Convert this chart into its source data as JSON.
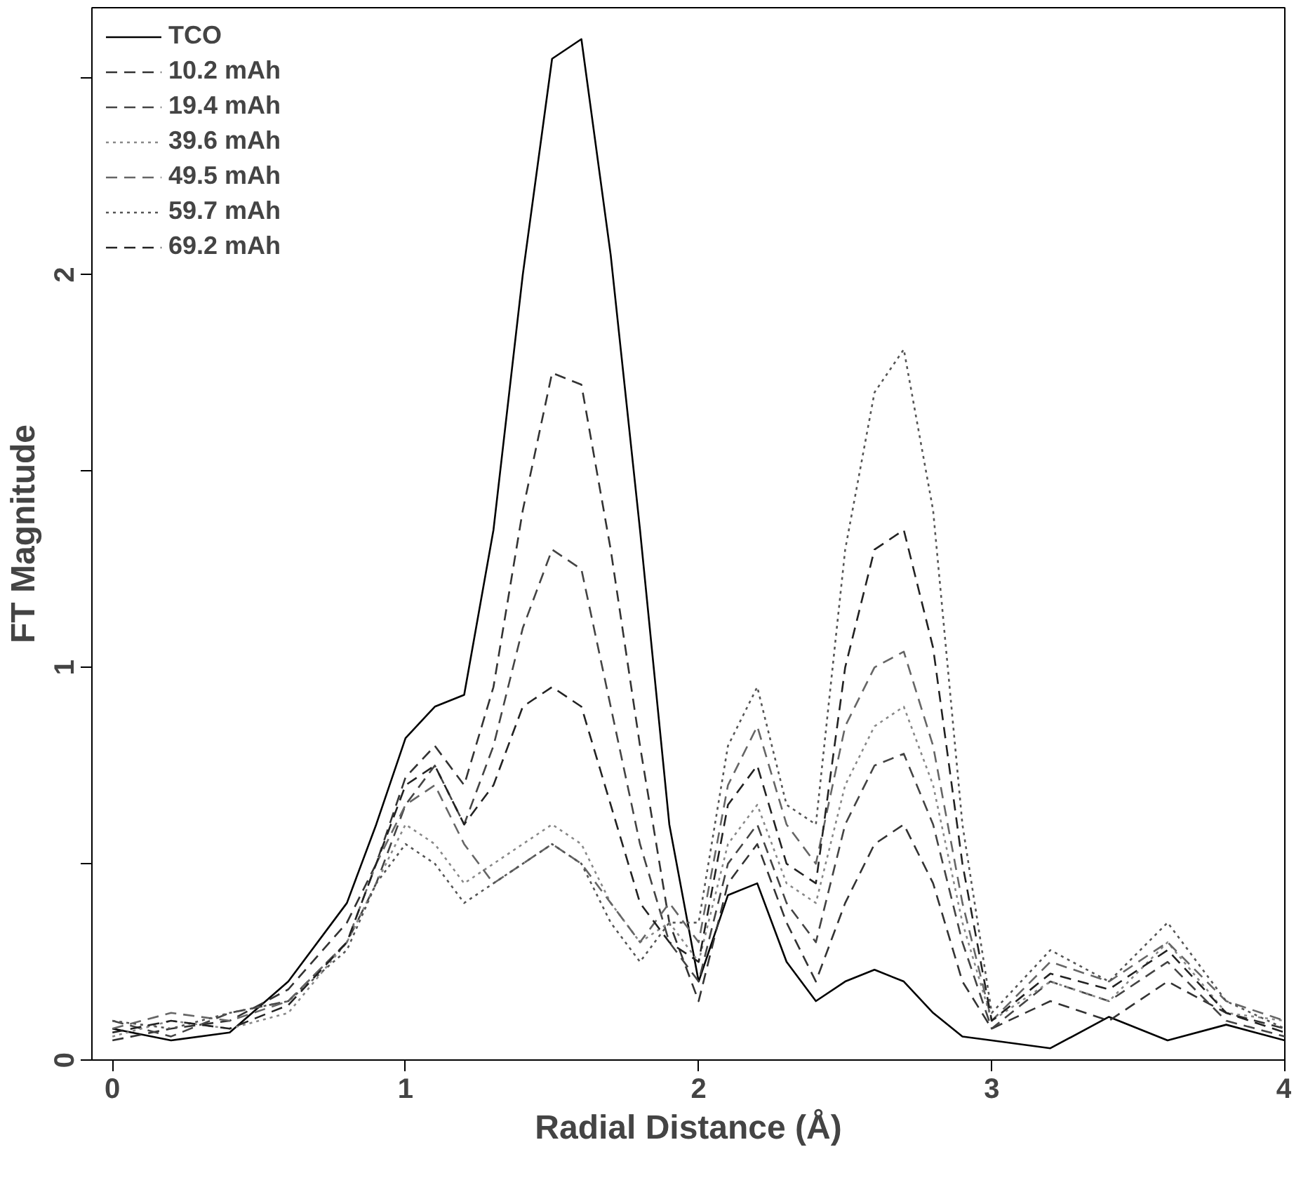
{
  "chart_data": {
    "type": "line",
    "xlabel": "Radial Distance (Å)",
    "ylabel": "FT Magnitude",
    "xlim": [
      -0.07,
      4
    ],
    "xticks": [
      0,
      1,
      2,
      3,
      4
    ],
    "ylim": [
      0,
      2.68
    ],
    "yticks": [
      0,
      {
        "value": 0.5,
        "label": null
      },
      1,
      {
        "value": 1.5,
        "label": null
      },
      2,
      {
        "value": 2.5,
        "label": null
      }
    ],
    "grid": false,
    "legend": "top left",
    "marker": "none",
    "x": [
      0,
      0.2,
      0.4,
      0.6,
      0.8,
      0.9,
      1.0,
      1.1,
      1.2,
      1.3,
      1.4,
      1.5,
      1.6,
      1.7,
      1.8,
      1.9,
      2.0,
      2.1,
      2.2,
      2.3,
      2.4,
      2.5,
      2.6,
      2.7,
      2.8,
      2.9,
      3.0,
      3.2,
      3.4,
      3.6,
      3.8,
      4.0
    ],
    "series": [
      {
        "name": "TCO",
        "color": "#000000",
        "line_style": "solid",
        "values": [
          0.08,
          0.05,
          0.07,
          0.2,
          0.4,
          0.6,
          0.82,
          0.9,
          0.93,
          1.35,
          2.0,
          2.55,
          2.6,
          2.05,
          1.35,
          0.6,
          0.2,
          0.42,
          0.45,
          0.25,
          0.15,
          0.2,
          0.23,
          0.2,
          0.12,
          0.06,
          0.05,
          0.03,
          0.11,
          0.05,
          0.09,
          0.05
        ]
      },
      {
        "name": "10.2 mAh",
        "color": "#333333",
        "line_style": "dashed",
        "values": [
          0.05,
          0.08,
          0.1,
          0.18,
          0.35,
          0.5,
          0.72,
          0.8,
          0.7,
          0.95,
          1.4,
          1.75,
          1.72,
          1.3,
          0.8,
          0.35,
          0.15,
          0.45,
          0.55,
          0.35,
          0.2,
          0.4,
          0.55,
          0.6,
          0.45,
          0.2,
          0.08,
          0.15,
          0.1,
          0.2,
          0.12,
          0.08
        ]
      },
      {
        "name": "19.4 mAh",
        "color": "#444444",
        "line_style": "dashed",
        "values": [
          0.1,
          0.06,
          0.12,
          0.15,
          0.3,
          0.45,
          0.65,
          0.75,
          0.6,
          0.8,
          1.1,
          1.3,
          1.25,
          0.9,
          0.55,
          0.3,
          0.2,
          0.5,
          0.6,
          0.4,
          0.3,
          0.6,
          0.75,
          0.78,
          0.6,
          0.3,
          0.08,
          0.2,
          0.15,
          0.25,
          0.1,
          0.06
        ]
      },
      {
        "name": "39.6 mAh",
        "color": "#888888",
        "line_style": "dotted",
        "values": [
          0.06,
          0.1,
          0.08,
          0.12,
          0.3,
          0.45,
          0.6,
          0.55,
          0.45,
          0.5,
          0.55,
          0.6,
          0.55,
          0.4,
          0.3,
          0.35,
          0.25,
          0.55,
          0.65,
          0.45,
          0.4,
          0.7,
          0.85,
          0.9,
          0.7,
          0.35,
          0.1,
          0.2,
          0.15,
          0.3,
          0.12,
          0.1
        ]
      },
      {
        "name": "49.5 mAh",
        "color": "#666666",
        "line_style": "dashed",
        "values": [
          0.08,
          0.12,
          0.1,
          0.15,
          0.3,
          0.5,
          0.65,
          0.7,
          0.55,
          0.45,
          0.5,
          0.55,
          0.5,
          0.4,
          0.3,
          0.4,
          0.3,
          0.7,
          0.85,
          0.6,
          0.5,
          0.85,
          1.0,
          1.04,
          0.8,
          0.4,
          0.1,
          0.25,
          0.2,
          0.3,
          0.15,
          0.1
        ]
      },
      {
        "name": "59.7 mAh",
        "color": "#555555",
        "line_style": "dotted",
        "values": [
          0.1,
          0.08,
          0.12,
          0.15,
          0.28,
          0.45,
          0.55,
          0.5,
          0.4,
          0.45,
          0.5,
          0.55,
          0.5,
          0.35,
          0.25,
          0.35,
          0.35,
          0.8,
          0.95,
          0.65,
          0.6,
          1.3,
          1.7,
          1.81,
          1.4,
          0.6,
          0.12,
          0.28,
          0.2,
          0.35,
          0.15,
          0.08
        ]
      },
      {
        "name": "69.2 mAh",
        "color": "#222222",
        "line_style": "dashed",
        "values": [
          0.07,
          0.1,
          0.08,
          0.14,
          0.3,
          0.5,
          0.7,
          0.75,
          0.6,
          0.7,
          0.9,
          0.95,
          0.9,
          0.65,
          0.4,
          0.3,
          0.25,
          0.65,
          0.75,
          0.5,
          0.45,
          1.0,
          1.3,
          1.35,
          1.05,
          0.5,
          0.1,
          0.22,
          0.18,
          0.28,
          0.12,
          0.07
        ]
      }
    ]
  }
}
